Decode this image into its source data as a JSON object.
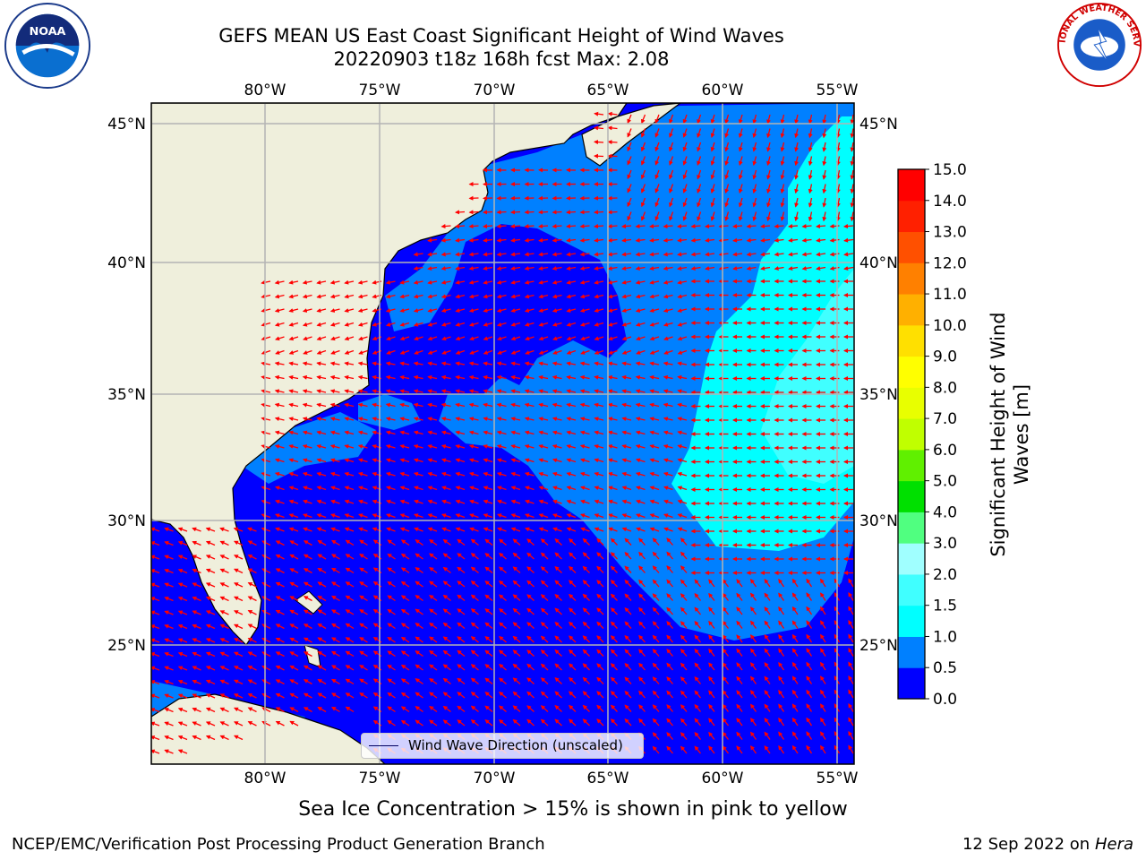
{
  "title": {
    "line1": "GEFS MEAN US East Coast Significant Height of Wind Waves",
    "line2": "20220903 t18z 168h fcst   Max: 2.08"
  },
  "map": {
    "projection": "equirectangular",
    "lon_range": [
      -85,
      -54.3
    ],
    "lat_range": [
      20.3,
      45.8
    ],
    "lon_ticks": [
      "80°W",
      "75°W",
      "70°W",
      "65°W",
      "60°W",
      "55°W"
    ],
    "lat_ticks": [
      "45°N",
      "40°N",
      "35°N",
      "30°N",
      "25°N"
    ],
    "grid": true,
    "land_color": "#efefdc",
    "arrow_color": "#ff0000",
    "arrow_field": "wind-wave-direction"
  },
  "legend": {
    "label": "Wind Wave Direction (unscaled)",
    "placement": "bottom-center"
  },
  "colorbar": {
    "label": "Significant Height of Wind Waves [m]",
    "ticks": [
      "15.0",
      "14.0",
      "13.0",
      "12.0",
      "11.0",
      "10.0",
      "9.0",
      "8.0",
      "7.0",
      "6.0",
      "5.0",
      "4.0",
      "3.0",
      "2.0",
      "1.5",
      "1.0",
      "0.5",
      "0.0"
    ],
    "levels": [
      0,
      0.5,
      1,
      1.5,
      2,
      3,
      4,
      5,
      6,
      7,
      8,
      9,
      10,
      11,
      12,
      13,
      14,
      15
    ],
    "colors": [
      "#0000ff",
      "#0080ff",
      "#00ffff",
      "#40ffff",
      "#a0ffff",
      "#50ff80",
      "#00e000",
      "#60f000",
      "#c0ff00",
      "#e8ff00",
      "#ffff00",
      "#ffe000",
      "#ffb000",
      "#ff8000",
      "#ff5000",
      "#ff2000",
      "#ff0000"
    ]
  },
  "logos": {
    "left": "NOAA",
    "right": "NATIONAL WEATHER SERVICE"
  },
  "footer": {
    "sea_ice_note": "Sea Ice Concentration > 15% is shown in pink to yellow",
    "credit": "NCEP/EMC/Verification Post Processing Product Generation Branch",
    "date": "12 Sep 2022 on",
    "host": "Hera"
  }
}
